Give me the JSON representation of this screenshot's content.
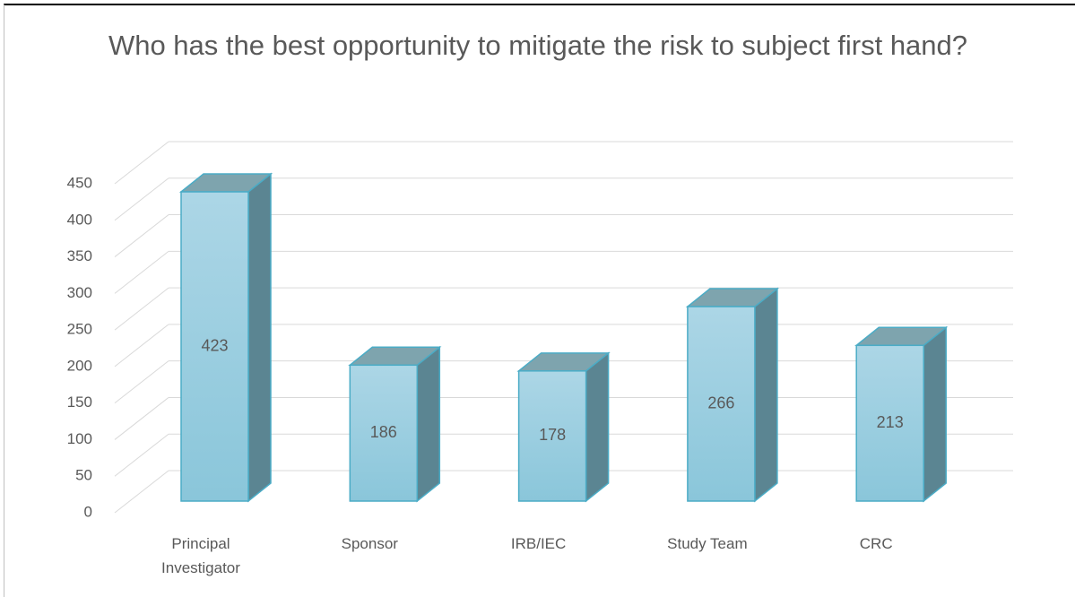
{
  "chart_data": {
    "type": "bar3d",
    "title": "Who has the best opportunity to mitigate the risk to subject first hand?",
    "categories": [
      "Principal Investigator",
      "Sponsor",
      "IRB/IEC",
      "Study Team",
      "CRC"
    ],
    "values": [
      423,
      186,
      178,
      266,
      213
    ],
    "color": "#9fd0e2",
    "ylim": [
      0,
      450
    ],
    "yticks": [
      0,
      50,
      100,
      150,
      200,
      250,
      300,
      350,
      400,
      450
    ],
    "grid": true
  }
}
